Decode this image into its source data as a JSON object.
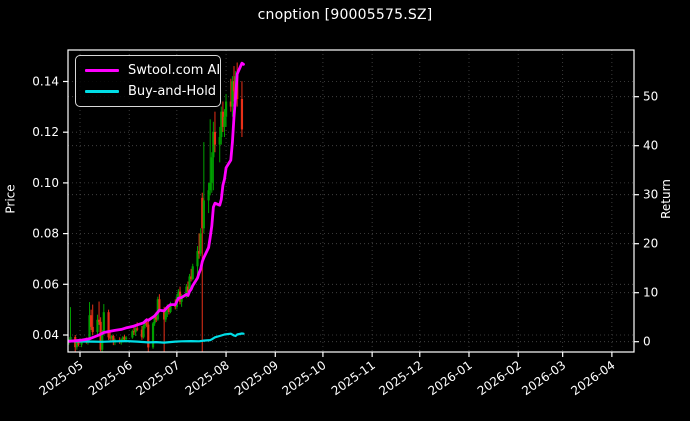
{
  "window": {
    "title": "cnoption [90005575.SZ]"
  },
  "chart_data": {
    "type": "candlestick+line",
    "title": "cnoption [90005575.SZ]",
    "legend": [
      {
        "label": "Swtool.com AI",
        "color": "#ff00ff"
      },
      {
        "label": "Buy-and-Hold",
        "color": "#00dde6"
      }
    ],
    "x_axis": {
      "tick_labels": [
        "2025-05",
        "2025-06",
        "2025-07",
        "2025-08",
        "2025-09",
        "2025-10",
        "2025-11",
        "2025-12",
        "2026-01",
        "2026-02",
        "2026-03",
        "2026-04"
      ],
      "tick_dates": [
        "2025-05-01",
        "2025-06-01",
        "2025-07-01",
        "2025-08-01",
        "2025-09-01",
        "2025-10-01",
        "2025-11-01",
        "2025-12-01",
        "2026-01-01",
        "2026-02-01",
        "2026-03-01",
        "2026-04-01"
      ]
    },
    "price_axis": {
      "label": "Price",
      "ticks": [
        0.04,
        0.06,
        0.08,
        0.1,
        0.12,
        0.14
      ],
      "tick_labels": [
        "0.04",
        "0.06",
        "0.08",
        "0.10",
        "0.12",
        "0.14"
      ]
    },
    "return_axis": {
      "label": "Return",
      "ticks": [
        0,
        10,
        20,
        30,
        40,
        50
      ],
      "tick_labels": [
        "0",
        "10",
        "20",
        "30",
        "40",
        "50"
      ]
    },
    "colors": {
      "background": "#000000",
      "frame": "#ffffff",
      "grid": "#4a4a4a",
      "up": "#00a000",
      "down": "#e83018",
      "swtool": "#ff00ff",
      "buyhold": "#00dde6",
      "text": "#ffffff"
    },
    "candles": [
      [
        "2025-04-24",
        0.0375,
        0.0385,
        0.0362,
        0.0378
      ],
      [
        "2025-04-25",
        0.0378,
        0.051,
        0.037,
        0.0392
      ],
      [
        "2025-04-28",
        0.0392,
        0.04,
        0.0335,
        0.0352
      ],
      [
        "2025-04-29",
        0.0352,
        0.0382,
        0.0342,
        0.0376
      ],
      [
        "2025-04-30",
        0.0376,
        0.0382,
        0.0355,
        0.0362
      ],
      [
        "2025-05-02",
        0.0362,
        0.038,
        0.0352,
        0.0378
      ],
      [
        "2025-05-05",
        0.0378,
        0.039,
        0.0366,
        0.0371
      ],
      [
        "2025-05-06",
        0.0371,
        0.0386,
        0.0362,
        0.0382
      ],
      [
        "2025-05-07",
        0.0382,
        0.053,
        0.0376,
        0.0478
      ],
      [
        "2025-05-08",
        0.0478,
        0.05,
        0.042,
        0.0432
      ],
      [
        "2025-05-09",
        0.0432,
        0.052,
        0.04,
        0.0412
      ],
      [
        "2025-05-12",
        0.0412,
        0.048,
        0.0392,
        0.046
      ],
      [
        "2025-05-13",
        0.046,
        0.0532,
        0.044,
        0.0452
      ],
      [
        "2025-05-14",
        0.0452,
        0.047,
        0.0336,
        0.0342
      ],
      [
        "2025-05-15",
        0.0342,
        0.042,
        0.0335,
        0.0408
      ],
      [
        "2025-05-16",
        0.0408,
        0.0522,
        0.04,
        0.049
      ],
      [
        "2025-05-19",
        0.049,
        0.05,
        0.038,
        0.0391
      ],
      [
        "2025-05-20",
        0.0391,
        0.0412,
        0.0371,
        0.0386
      ],
      [
        "2025-05-21",
        0.0386,
        0.04,
        0.0375,
        0.0396
      ],
      [
        "2025-05-22",
        0.0396,
        0.0401,
        0.036,
        0.0371
      ],
      [
        "2025-05-23",
        0.0371,
        0.0386,
        0.036,
        0.0381
      ],
      [
        "2025-05-26",
        0.0381,
        0.0391,
        0.0365,
        0.0372
      ],
      [
        "2025-05-27",
        0.0372,
        0.0386,
        0.0362,
        0.0381
      ],
      [
        "2025-05-28",
        0.0381,
        0.0396,
        0.037,
        0.0391
      ],
      [
        "2025-05-29",
        0.0391,
        0.0401,
        0.0375,
        0.0383
      ],
      [
        "2025-05-30",
        0.0383,
        0.0396,
        0.037,
        0.039
      ],
      [
        "2025-06-03",
        0.039,
        0.0421,
        0.0385,
        0.0415
      ],
      [
        "2025-06-04",
        0.0415,
        0.0441,
        0.04,
        0.0411
      ],
      [
        "2025-06-05",
        0.0411,
        0.0431,
        0.0396,
        0.0426
      ],
      [
        "2025-06-06",
        0.0426,
        0.045,
        0.0415,
        0.0421
      ],
      [
        "2025-06-09",
        0.0421,
        0.0436,
        0.0381,
        0.0391
      ],
      [
        "2025-06-10",
        0.0391,
        0.0441,
        0.0386,
        0.0436
      ],
      [
        "2025-06-11",
        0.0436,
        0.0461,
        0.0426,
        0.0451
      ],
      [
        "2025-06-12",
        0.0451,
        0.0466,
        0.0431,
        0.0441
      ],
      [
        "2025-06-13",
        0.0441,
        0.0456,
        0.0334,
        0.0351
      ],
      [
        "2025-06-16",
        0.0351,
        0.0451,
        0.0345,
        0.0446
      ],
      [
        "2025-06-17",
        0.0446,
        0.0481,
        0.0436,
        0.0471
      ],
      [
        "2025-06-18",
        0.0471,
        0.0491,
        0.0451,
        0.0461
      ],
      [
        "2025-06-19",
        0.0461,
        0.0551,
        0.0456,
        0.0541
      ],
      [
        "2025-06-20",
        0.0541,
        0.0561,
        0.0491,
        0.0501
      ],
      [
        "2025-06-23",
        0.0501,
        0.0511,
        0.0335,
        0.0461
      ],
      [
        "2025-06-24",
        0.0461,
        0.0501,
        0.0451,
        0.0491
      ],
      [
        "2025-06-25",
        0.0491,
        0.0521,
        0.0471,
        0.0506
      ],
      [
        "2025-06-26",
        0.0506,
        0.0516,
        0.0481,
        0.0491
      ],
      [
        "2025-06-27",
        0.0491,
        0.0531,
        0.0486,
        0.0521
      ],
      [
        "2025-06-30",
        0.0521,
        0.0541,
        0.0501,
        0.0511
      ],
      [
        "2025-07-01",
        0.0511,
        0.0561,
        0.0501,
        0.0551
      ],
      [
        "2025-07-02",
        0.0551,
        0.0581,
        0.0541,
        0.0571
      ],
      [
        "2025-07-03",
        0.0571,
        0.0591,
        0.0521,
        0.0531
      ],
      [
        "2025-07-04",
        0.0531,
        0.0561,
        0.0511,
        0.0556
      ],
      [
        "2025-07-07",
        0.0556,
        0.0601,
        0.0546,
        0.0591
      ],
      [
        "2025-07-08",
        0.0591,
        0.0611,
        0.0561,
        0.0571
      ],
      [
        "2025-07-09",
        0.0571,
        0.0641,
        0.0566,
        0.0631
      ],
      [
        "2025-07-10",
        0.0631,
        0.0661,
        0.0611,
        0.0621
      ],
      [
        "2025-07-11",
        0.0621,
        0.0681,
        0.0616,
        0.0671
      ],
      [
        "2025-07-14",
        0.0671,
        0.0751,
        0.0631,
        0.0731
      ],
      [
        "2025-07-15",
        0.0731,
        0.0801,
        0.0701,
        0.0721
      ],
      [
        "2025-07-16",
        0.0721,
        0.0821,
        0.0711,
        0.0801
      ],
      [
        "2025-07-17",
        0.0941,
        0.0961,
        0.0331,
        0.0821
      ],
      [
        "2025-07-18",
        0.0821,
        0.1161,
        0.0801,
        0.0931
      ],
      [
        "2025-07-21",
        0.0931,
        0.1001,
        0.0881,
        0.0971
      ],
      [
        "2025-07-22",
        0.0971,
        0.1251,
        0.0951,
        0.1001
      ],
      [
        "2025-07-23",
        0.1001,
        0.1121,
        0.0961,
        0.1101
      ],
      [
        "2025-07-24",
        0.1101,
        0.1241,
        0.0971,
        0.1201
      ],
      [
        "2025-07-25",
        0.1201,
        0.1281,
        0.1121,
        0.1151
      ],
      [
        "2025-07-28",
        0.1151,
        0.1221,
        0.1081,
        0.1181
      ],
      [
        "2025-07-29",
        0.1181,
        0.1301,
        0.1151,
        0.1281
      ],
      [
        "2025-07-30",
        0.1281,
        0.1321,
        0.1201,
        0.1221
      ],
      [
        "2025-07-31",
        0.1221,
        0.1291,
        0.1181,
        0.1261
      ],
      [
        "2025-08-01",
        0.1261,
        0.1351,
        0.1221,
        0.1321
      ],
      [
        "2025-08-04",
        0.1321,
        0.1411,
        0.1281,
        0.1301
      ],
      [
        "2025-08-05",
        0.1301,
        0.1421,
        0.1261,
        0.1401
      ],
      [
        "2025-08-06",
        0.1401,
        0.1461,
        0.1321,
        0.1361
      ],
      [
        "2025-08-07",
        0.1361,
        0.1441,
        0.1301,
        0.1421
      ],
      [
        "2025-08-08",
        0.1421,
        0.1475,
        0.1301,
        0.1331
      ],
      [
        "2025-08-11",
        0.1331,
        0.1401,
        0.1181,
        0.1211
      ]
    ],
    "series": [
      {
        "name": "Swtool.com AI",
        "color": "#ff00ff",
        "width": 2.8,
        "points": [
          [
            "2025-04-24",
            0.0375
          ],
          [
            "2025-05-02",
            0.038
          ],
          [
            "2025-05-07",
            0.0385
          ],
          [
            "2025-05-09",
            0.039
          ],
          [
            "2025-05-13",
            0.04
          ],
          [
            "2025-05-16",
            0.041
          ],
          [
            "2025-05-20",
            0.0415
          ],
          [
            "2025-05-23",
            0.0418
          ],
          [
            "2025-05-27",
            0.0422
          ],
          [
            "2025-05-30",
            0.0428
          ],
          [
            "2025-06-04",
            0.0435
          ],
          [
            "2025-06-06",
            0.044
          ],
          [
            "2025-06-10",
            0.0448
          ],
          [
            "2025-06-12",
            0.046
          ],
          [
            "2025-06-13",
            0.0458
          ],
          [
            "2025-06-17",
            0.0475
          ],
          [
            "2025-06-19",
            0.049
          ],
          [
            "2025-06-20",
            0.0498
          ],
          [
            "2025-06-23",
            0.0495
          ],
          [
            "2025-06-25",
            0.051
          ],
          [
            "2025-06-27",
            0.052
          ],
          [
            "2025-06-30",
            0.052
          ],
          [
            "2025-07-02",
            0.0545
          ],
          [
            "2025-07-04",
            0.0548
          ],
          [
            "2025-07-07",
            0.056
          ],
          [
            "2025-07-08",
            0.0556
          ],
          [
            "2025-07-09",
            0.0572
          ],
          [
            "2025-07-10",
            0.058
          ],
          [
            "2025-07-11",
            0.0595
          ],
          [
            "2025-07-14",
            0.0625
          ],
          [
            "2025-07-15",
            0.0645
          ],
          [
            "2025-07-16",
            0.066
          ],
          [
            "2025-07-17",
            0.069
          ],
          [
            "2025-07-18",
            0.0705
          ],
          [
            "2025-07-21",
            0.0745
          ],
          [
            "2025-07-22",
            0.0785
          ],
          [
            "2025-07-23",
            0.083
          ],
          [
            "2025-07-24",
            0.0905
          ],
          [
            "2025-07-25",
            0.092
          ],
          [
            "2025-07-28",
            0.0912
          ],
          [
            "2025-07-29",
            0.0935
          ],
          [
            "2025-07-30",
            0.099
          ],
          [
            "2025-07-31",
            0.1015
          ],
          [
            "2025-08-01",
            0.106
          ],
          [
            "2025-08-04",
            0.109
          ],
          [
            "2025-08-05",
            0.116
          ],
          [
            "2025-08-06",
            0.126
          ],
          [
            "2025-08-07",
            0.134
          ],
          [
            "2025-08-08",
            0.143
          ],
          [
            "2025-08-11",
            0.1472
          ],
          [
            "2025-08-12",
            0.1468
          ]
        ]
      },
      {
        "name": "Buy-and-Hold",
        "color": "#00dde6",
        "width": 2.2,
        "points": [
          [
            "2025-04-24",
            0.0375
          ],
          [
            "2025-05-09",
            0.0374
          ],
          [
            "2025-05-15",
            0.0373
          ],
          [
            "2025-05-23",
            0.0375
          ],
          [
            "2025-05-30",
            0.0376
          ],
          [
            "2025-06-06",
            0.0374
          ],
          [
            "2025-06-13",
            0.0371
          ],
          [
            "2025-06-18",
            0.0372
          ],
          [
            "2025-06-23",
            0.037
          ],
          [
            "2025-06-30",
            0.0374
          ],
          [
            "2025-07-04",
            0.0375
          ],
          [
            "2025-07-10",
            0.0376
          ],
          [
            "2025-07-15",
            0.0375
          ],
          [
            "2025-07-18",
            0.0378
          ],
          [
            "2025-07-22",
            0.038
          ],
          [
            "2025-07-23",
            0.0383
          ],
          [
            "2025-07-25",
            0.0391
          ],
          [
            "2025-07-29",
            0.0398
          ],
          [
            "2025-07-31",
            0.0402
          ],
          [
            "2025-08-04",
            0.0405
          ],
          [
            "2025-08-06",
            0.0398
          ],
          [
            "2025-08-07",
            0.0396
          ],
          [
            "2025-08-08",
            0.0402
          ],
          [
            "2025-08-11",
            0.0406
          ],
          [
            "2025-08-12",
            0.0405
          ]
        ]
      }
    ]
  }
}
